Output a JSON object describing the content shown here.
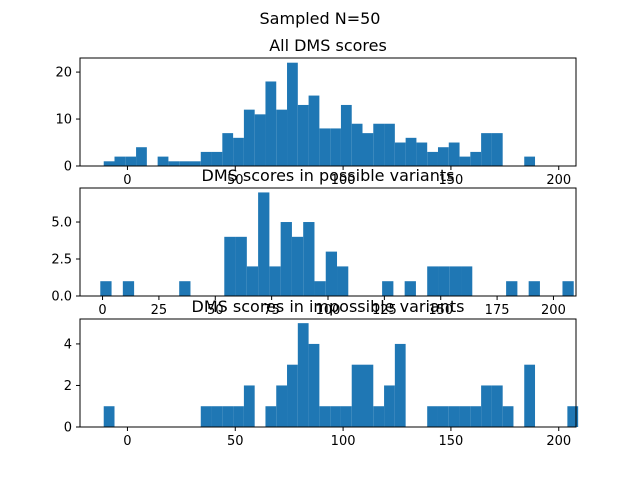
{
  "figure": {
    "suptitle": "Sampled N=50",
    "bar_color": "#1f77b4"
  },
  "chart_data": [
    {
      "type": "bar",
      "title": "All DMS scores",
      "xlim": [
        -22,
        208
      ],
      "ylim": [
        0,
        23
      ],
      "xticks": [
        0,
        50,
        100,
        150,
        200
      ],
      "yticks": [
        0,
        10,
        20
      ],
      "bin_start": -11,
      "bin_width": 5,
      "values": [
        1,
        2,
        2,
        4,
        0,
        2,
        1,
        1,
        1,
        3,
        3,
        7,
        6,
        12,
        11,
        18,
        12,
        22,
        13,
        15,
        8,
        8,
        13,
        9,
        7,
        9,
        9,
        5,
        6,
        5,
        3,
        4,
        5,
        2,
        3,
        7,
        7,
        0,
        0,
        2
      ]
    },
    {
      "type": "bar",
      "title": "DMS scores in possible variants",
      "xlim": [
        -10,
        210
      ],
      "ylim": [
        0,
        7.3
      ],
      "xticks": [
        0,
        25,
        50,
        75,
        100,
        125,
        150,
        175,
        200
      ],
      "yticks": [
        0.0,
        2.5,
        5.0
      ],
      "bin_start": -1,
      "bin_width": 5,
      "values": [
        1,
        0,
        1,
        0,
        0,
        0,
        0,
        1,
        0,
        0,
        0,
        4,
        4,
        2,
        7,
        2,
        5,
        4,
        5,
        1,
        3,
        2,
        0,
        0,
        0,
        1,
        0,
        1,
        0,
        2,
        2,
        2,
        2,
        0,
        0,
        0,
        1,
        0,
        1,
        0,
        0,
        1
      ]
    },
    {
      "type": "bar",
      "title": "DMS scores in impossible variants",
      "xlim": [
        -22,
        208
      ],
      "ylim": [
        0,
        5.2
      ],
      "xticks": [
        0,
        50,
        100,
        150,
        200
      ],
      "yticks": [
        0,
        2,
        4
      ],
      "bin_start": -11,
      "bin_width": 5,
      "values": [
        1,
        0,
        0,
        0,
        0,
        0,
        0,
        0,
        0,
        1,
        1,
        1,
        1,
        2,
        0,
        1,
        2,
        3,
        5,
        4,
        1,
        1,
        1,
        3,
        3,
        1,
        2,
        4,
        0,
        0,
        1,
        1,
        1,
        1,
        1,
        2,
        2,
        1,
        0,
        3,
        0,
        0,
        0,
        1
      ]
    }
  ]
}
